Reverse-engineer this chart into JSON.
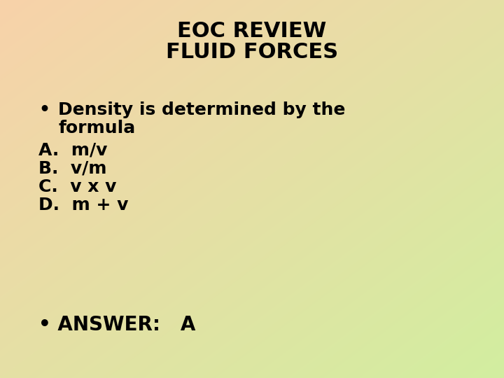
{
  "title_line1": "EOC REVIEW",
  "title_line2": "FLUID FORCES",
  "title_fontsize": 22,
  "title_color": "#000000",
  "bullet_text": "•   Density is determined by the\n     formula",
  "options": [
    "A.  m/v",
    "B.  v/m",
    "C.  v x v",
    "D.  m + v"
  ],
  "answer": "• ANSWER:   A",
  "body_fontsize": 18,
  "answer_fontsize": 20,
  "text_color": "#000000",
  "tl_color": [
    248,
    210,
    170
  ],
  "br_color": [
    210,
    238,
    160
  ]
}
